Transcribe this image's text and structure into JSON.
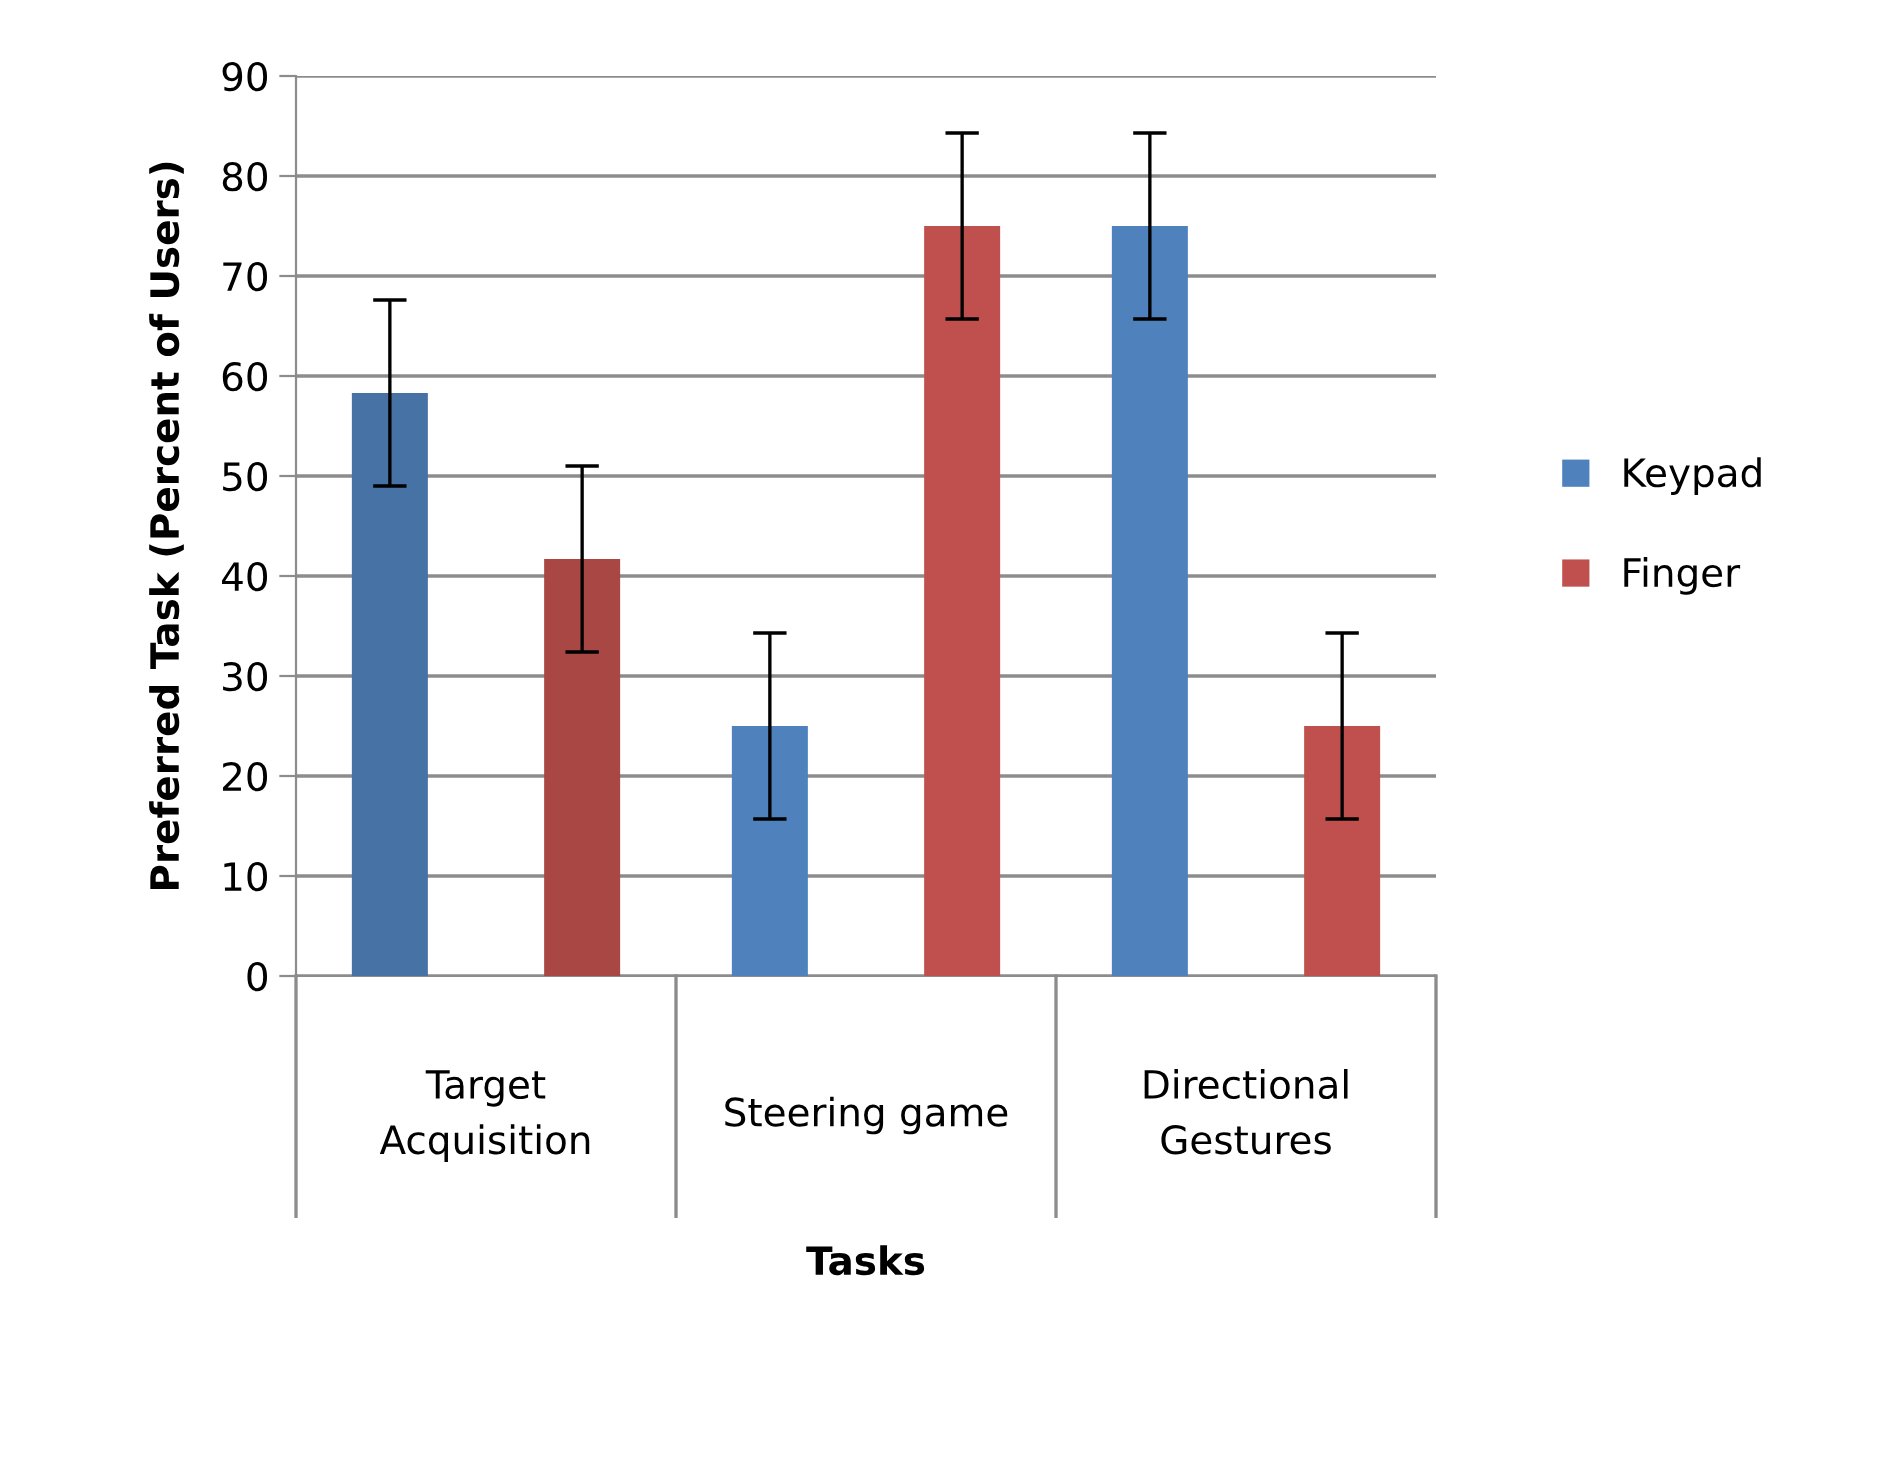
{
  "chart_data": {
    "type": "bar",
    "categories": [
      "Target\nAcquisition",
      "Steering game",
      "Directional\nGestures"
    ],
    "xlabel": "Tasks",
    "ylabel": "Preferred Task (Percent of Users)",
    "series": [
      {
        "name": "Keypad",
        "color": "#4f81bd",
        "colors": [
          "#4672a6",
          "#4f81bd",
          "#4f81bd"
        ],
        "values": [
          58.3,
          25,
          75
        ],
        "errors": [
          9.3,
          9.3,
          9.3
        ]
      },
      {
        "name": "Finger",
        "color": "#c0504d",
        "colors": [
          "#a94744",
          "#c0504d",
          "#c0504d"
        ],
        "values": [
          41.7,
          75,
          25
        ],
        "errors": [
          9.3,
          9.3,
          9.3
        ]
      }
    ],
    "ylim": [
      0,
      90
    ],
    "yticks": [
      0,
      10,
      20,
      30,
      40,
      50,
      60,
      70,
      80,
      90
    ],
    "grid": "y",
    "legend": "right"
  }
}
